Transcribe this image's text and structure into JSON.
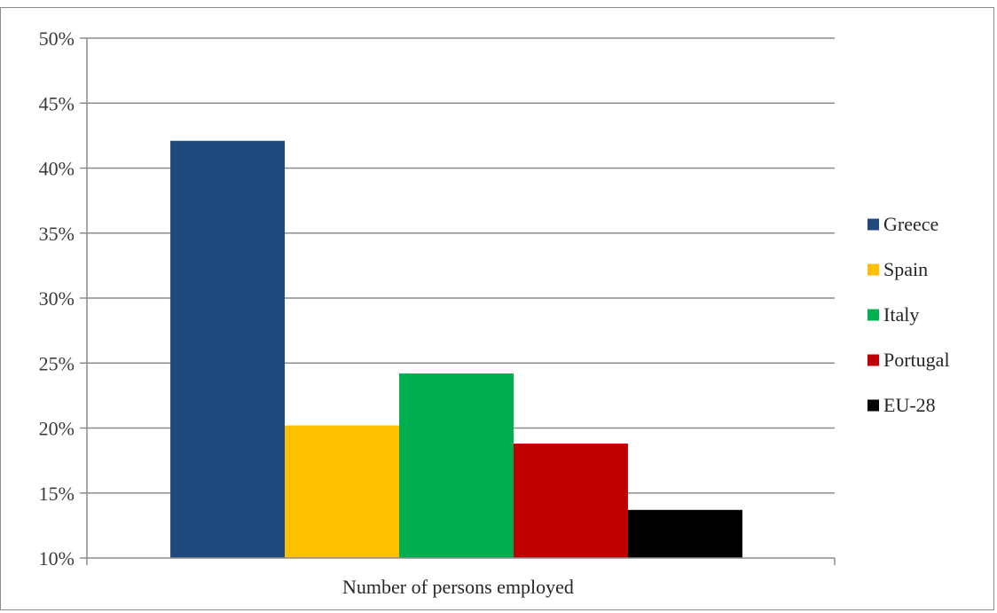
{
  "chart_data": {
    "type": "bar",
    "title": "",
    "xlabel": "Number of persons employed",
    "ylabel": "",
    "categories": [
      "Number of persons employed"
    ],
    "y_format": "percent",
    "ylim": [
      10,
      50
    ],
    "y_ticks": [
      10,
      15,
      20,
      25,
      30,
      35,
      40,
      45,
      50
    ],
    "y_tick_labels": [
      "10%",
      "15%",
      "20%",
      "25%",
      "30%",
      "35%",
      "40%",
      "45%",
      "50%"
    ],
    "grid": true,
    "legend_position": "right",
    "series": [
      {
        "name": "Greece",
        "values": [
          42.1
        ],
        "color": "#1f497d"
      },
      {
        "name": "Spain",
        "values": [
          20.2
        ],
        "color": "#ffc000"
      },
      {
        "name": "Italy",
        "values": [
          24.2
        ],
        "color": "#00b050"
      },
      {
        "name": "Portugal",
        "values": [
          18.8
        ],
        "color": "#c00000"
      },
      {
        "name": "EU-28",
        "values": [
          13.7
        ],
        "color": "#000000"
      }
    ]
  }
}
